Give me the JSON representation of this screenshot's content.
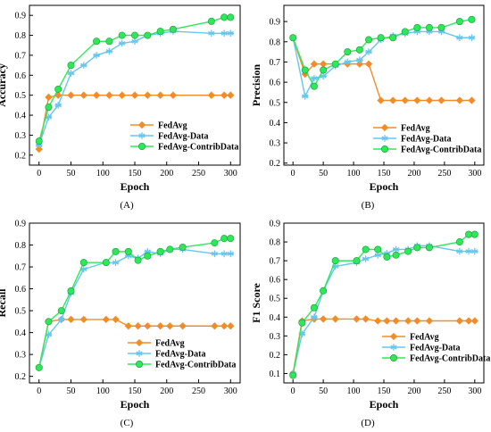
{
  "colors": {
    "FedAvg": "#F28C28",
    "FedAvg-Data": "#66C6EF",
    "FedAvg-ContribData": "#2EE85A",
    "axis": "#000000"
  },
  "chart_data": [
    {
      "type": "line",
      "panel_label": "(A)",
      "xlabel": "Epoch",
      "ylabel": "Accuracy",
      "xlim": [
        -15,
        315
      ],
      "ylim": [
        0.15,
        0.95
      ],
      "xticks": [
        "0",
        "50",
        "100",
        "150",
        "200",
        "250",
        "300"
      ],
      "yticks": [
        "0.2",
        "0.3",
        "0.4",
        "0.5",
        "0.6",
        "0.7",
        "0.8",
        "0.9"
      ],
      "legend_position": "bottom-right",
      "grid": false,
      "series": [
        {
          "name": "FedAvg",
          "marker": "diamond",
          "x": [
            0,
            15,
            30,
            50,
            70,
            90,
            110,
            130,
            150,
            170,
            190,
            210,
            270,
            290,
            300
          ],
          "y": [
            0.23,
            0.49,
            0.5,
            0.5,
            0.5,
            0.5,
            0.5,
            0.5,
            0.5,
            0.5,
            0.5,
            0.5,
            0.5,
            0.5,
            0.5
          ]
        },
        {
          "name": "FedAvg-Data",
          "marker": "star",
          "x": [
            0,
            15,
            30,
            50,
            70,
            90,
            110,
            130,
            150,
            170,
            190,
            210,
            270,
            290,
            300
          ],
          "y": [
            0.25,
            0.39,
            0.45,
            0.61,
            0.65,
            0.7,
            0.72,
            0.76,
            0.77,
            0.8,
            0.81,
            0.82,
            0.81,
            0.81,
            0.81
          ]
        },
        {
          "name": "FedAvg-ContribData",
          "marker": "circle",
          "x": [
            0,
            15,
            30,
            50,
            90,
            110,
            130,
            150,
            170,
            190,
            210,
            270,
            290,
            300
          ],
          "y": [
            0.27,
            0.44,
            0.53,
            0.65,
            0.77,
            0.77,
            0.8,
            0.8,
            0.8,
            0.82,
            0.83,
            0.87,
            0.89,
            0.89
          ]
        }
      ]
    },
    {
      "type": "line",
      "panel_label": "(B)",
      "xlabel": "Epoch",
      "ylabel": "Precision",
      "xlim": [
        -15,
        315
      ],
      "ylim": [
        0.19,
        0.98
      ],
      "xticks": [
        "0",
        "50",
        "100",
        "150",
        "200",
        "250",
        "300"
      ],
      "yticks": [
        "0.2",
        "0.3",
        "0.4",
        "0.5",
        "0.6",
        "0.7",
        "0.8",
        "0.9"
      ],
      "legend_position": "bottom-right",
      "grid": false,
      "series": [
        {
          "name": "FedAvg",
          "marker": "diamond",
          "x": [
            0,
            20,
            35,
            50,
            70,
            90,
            110,
            125,
            145,
            165,
            185,
            205,
            225,
            245,
            275,
            295
          ],
          "y": [
            0.82,
            0.64,
            0.69,
            0.69,
            0.69,
            0.69,
            0.69,
            0.69,
            0.51,
            0.51,
            0.51,
            0.51,
            0.51,
            0.51,
            0.51,
            0.51
          ]
        },
        {
          "name": "FedAvg-Data",
          "marker": "star",
          "x": [
            0,
            20,
            35,
            50,
            70,
            90,
            110,
            125,
            145,
            165,
            185,
            205,
            225,
            245,
            275,
            295
          ],
          "y": [
            0.82,
            0.53,
            0.62,
            0.63,
            0.68,
            0.7,
            0.71,
            0.75,
            0.81,
            0.83,
            0.84,
            0.85,
            0.85,
            0.85,
            0.82,
            0.82
          ]
        },
        {
          "name": "FedAvg-ContribData",
          "marker": "circle",
          "x": [
            0,
            20,
            35,
            50,
            70,
            90,
            110,
            125,
            145,
            165,
            185,
            205,
            225,
            245,
            275,
            295
          ],
          "y": [
            0.82,
            0.66,
            0.58,
            0.66,
            0.69,
            0.75,
            0.76,
            0.81,
            0.82,
            0.82,
            0.85,
            0.87,
            0.87,
            0.87,
            0.9,
            0.91
          ]
        }
      ]
    },
    {
      "type": "line",
      "panel_label": "(C)",
      "xlabel": "Epoch",
      "ylabel": "Recall",
      "xlim": [
        -15,
        315
      ],
      "ylim": [
        0.17,
        0.9
      ],
      "xticks": [
        "0",
        "50",
        "100",
        "150",
        "200",
        "250",
        "300"
      ],
      "yticks": [
        "0.2",
        "0.3",
        "0.4",
        "0.5",
        "0.6",
        "0.7",
        "0.8",
        "0.9"
      ],
      "legend_position": "bottom-right",
      "grid": false,
      "series": [
        {
          "name": "FedAvg",
          "marker": "diamond",
          "x": [
            0,
            15,
            35,
            50,
            70,
            105,
            120,
            140,
            155,
            170,
            190,
            205,
            225,
            275,
            290,
            300
          ],
          "y": [
            0.24,
            0.45,
            0.46,
            0.46,
            0.46,
            0.46,
            0.46,
            0.43,
            0.43,
            0.43,
            0.43,
            0.43,
            0.43,
            0.43,
            0.43,
            0.43
          ]
        },
        {
          "name": "FedAvg-Data",
          "marker": "star",
          "x": [
            0,
            15,
            35,
            50,
            70,
            105,
            120,
            140,
            155,
            170,
            190,
            205,
            225,
            275,
            290,
            300
          ],
          "y": [
            0.24,
            0.39,
            0.46,
            0.58,
            0.69,
            0.72,
            0.72,
            0.75,
            0.74,
            0.77,
            0.76,
            0.78,
            0.78,
            0.76,
            0.76,
            0.76
          ]
        },
        {
          "name": "FedAvg-ContribData",
          "marker": "circle",
          "x": [
            0,
            15,
            35,
            50,
            70,
            105,
            120,
            140,
            155,
            170,
            190,
            205,
            225,
            275,
            290,
            300
          ],
          "y": [
            0.24,
            0.45,
            0.5,
            0.59,
            0.72,
            0.72,
            0.77,
            0.77,
            0.73,
            0.75,
            0.77,
            0.78,
            0.79,
            0.81,
            0.83,
            0.83
          ]
        }
      ]
    },
    {
      "type": "line",
      "panel_label": "(D)",
      "xlabel": "Epoch",
      "ylabel": "F1 Score",
      "xlim": [
        -15,
        315
      ],
      "ylim": [
        0.05,
        0.9
      ],
      "xticks": [
        "0",
        "50",
        "100",
        "150",
        "200",
        "250",
        "300"
      ],
      "yticks": [
        "0.1",
        "0.2",
        "0.3",
        "0.4",
        "0.5",
        "0.6",
        "0.7",
        "0.8",
        "0.9"
      ],
      "legend_position": "bottom-right",
      "grid": false,
      "series": [
        {
          "name": "FedAvg",
          "marker": "diamond",
          "x": [
            0,
            15,
            35,
            50,
            70,
            105,
            120,
            140,
            155,
            170,
            190,
            205,
            225,
            275,
            290,
            300
          ],
          "y": [
            0.1,
            0.38,
            0.39,
            0.39,
            0.39,
            0.39,
            0.39,
            0.38,
            0.38,
            0.38,
            0.38,
            0.38,
            0.38,
            0.38,
            0.38,
            0.38
          ]
        },
        {
          "name": "FedAvg-Data",
          "marker": "star",
          "x": [
            0,
            15,
            35,
            50,
            70,
            105,
            120,
            140,
            155,
            170,
            190,
            205,
            225,
            275,
            290,
            300
          ],
          "y": [
            0.1,
            0.31,
            0.4,
            0.54,
            0.67,
            0.69,
            0.71,
            0.73,
            0.74,
            0.76,
            0.76,
            0.78,
            0.78,
            0.75,
            0.75,
            0.75
          ]
        },
        {
          "name": "FedAvg-ContribData",
          "marker": "circle",
          "x": [
            0,
            15,
            35,
            50,
            70,
            105,
            120,
            140,
            155,
            170,
            190,
            205,
            225,
            275,
            290,
            300
          ],
          "y": [
            0.09,
            0.37,
            0.45,
            0.54,
            0.7,
            0.7,
            0.76,
            0.76,
            0.72,
            0.73,
            0.75,
            0.77,
            0.77,
            0.8,
            0.84,
            0.84
          ]
        }
      ]
    }
  ]
}
